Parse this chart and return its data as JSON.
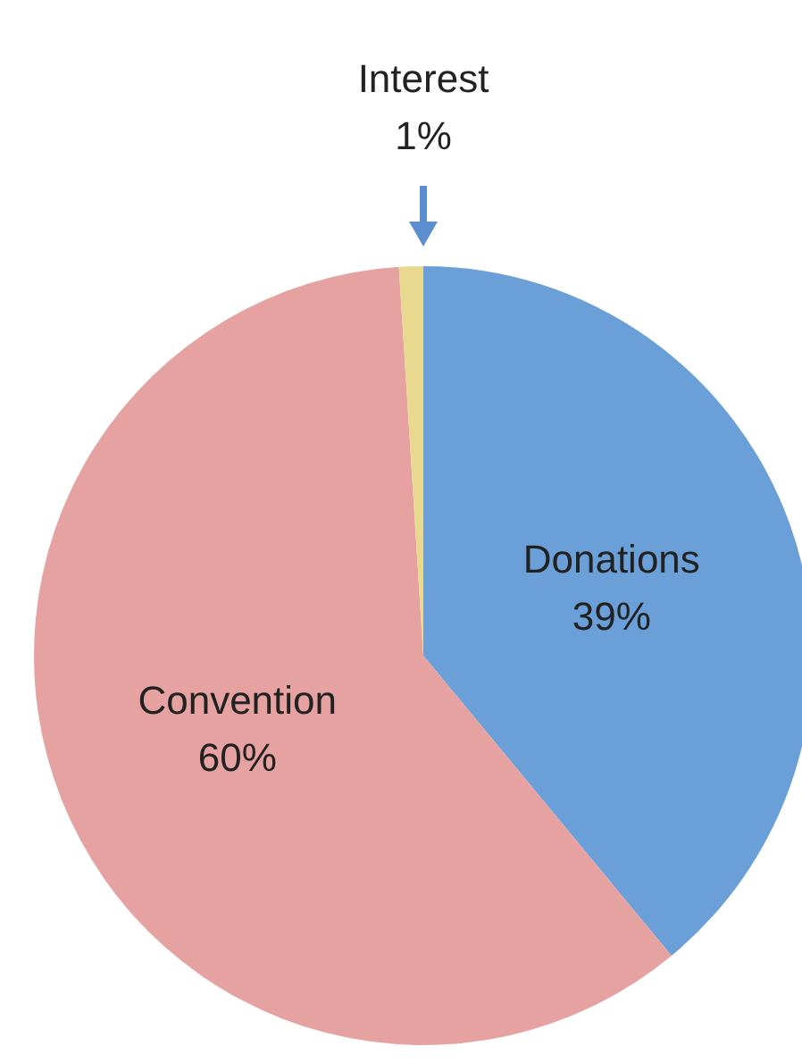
{
  "chart_data": {
    "type": "pie",
    "categories": [
      "Donations",
      "Convention",
      "Interest"
    ],
    "values": [
      39,
      60,
      1
    ],
    "value_labels": [
      "39%",
      "60%",
      "1%"
    ],
    "colors": [
      "#6a9fd8",
      "#e6a1a1",
      "#e9d98f"
    ]
  }
}
